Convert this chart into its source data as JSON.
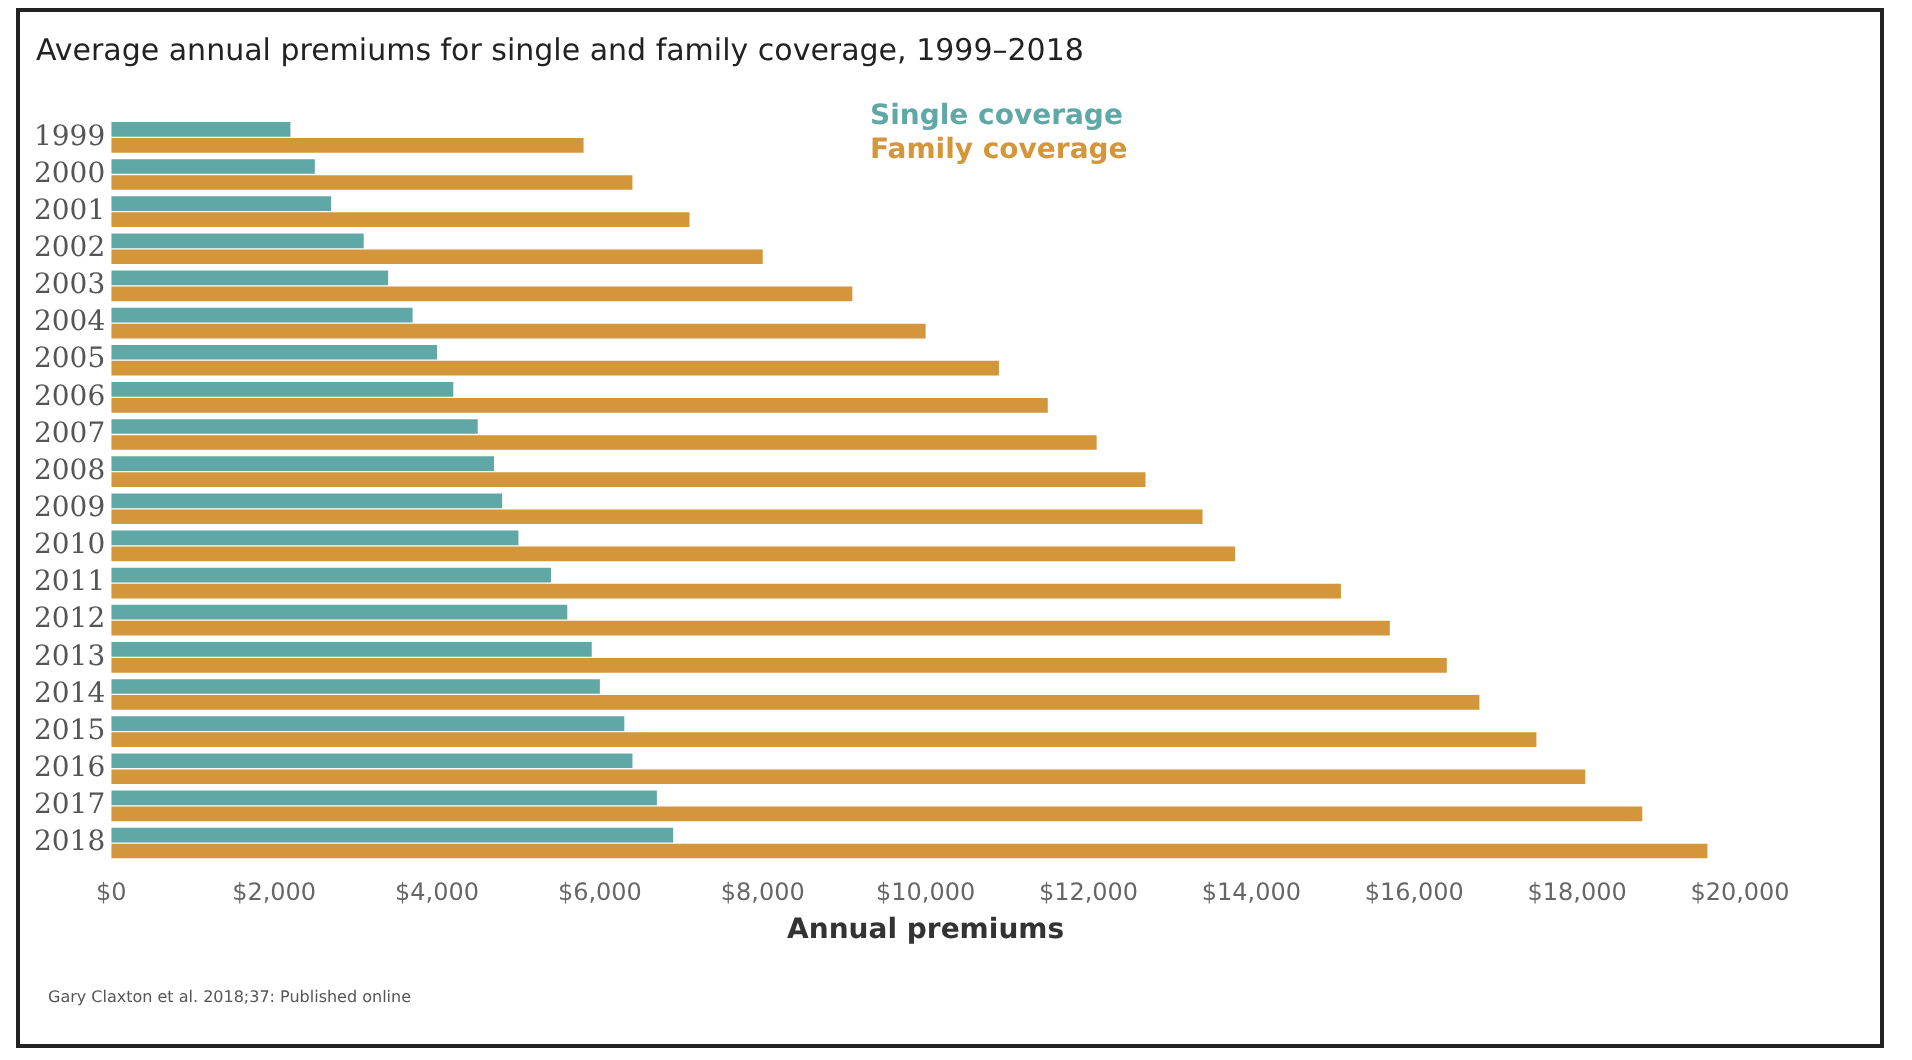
{
  "chart_data": {
    "type": "bar",
    "orientation": "horizontal",
    "title": "Average annual premiums for single and family coverage, 1999–2018",
    "xlabel": "Annual premiums",
    "categories": [
      "1999",
      "2000",
      "2001",
      "2002",
      "2003",
      "2004",
      "2005",
      "2006",
      "2007",
      "2008",
      "2009",
      "2010",
      "2011",
      "2012",
      "2013",
      "2014",
      "2015",
      "2016",
      "2017",
      "2018"
    ],
    "series": [
      {
        "name": "Single coverage",
        "color": "#5fa8a6",
        "values": [
          2200,
          2500,
          2700,
          3100,
          3400,
          3700,
          4000,
          4200,
          4500,
          4700,
          4800,
          5000,
          5400,
          5600,
          5900,
          6000,
          6300,
          6400,
          6700,
          6900
        ]
      },
      {
        "name": "Family coverage",
        "color": "#d4963a",
        "values": [
          5800,
          6400,
          7100,
          8000,
          9100,
          10000,
          10900,
          11500,
          12100,
          12700,
          13400,
          13800,
          15100,
          15700,
          16400,
          16800,
          17500,
          18100,
          18800,
          19600
        ]
      }
    ],
    "xlim": [
      0,
      20000
    ],
    "xticks": [
      {
        "value": 0,
        "label": "$0"
      },
      {
        "value": 2000,
        "label": "$2,000"
      },
      {
        "value": 4000,
        "label": "$4,000"
      },
      {
        "value": 6000,
        "label": "$6,000"
      },
      {
        "value": 8000,
        "label": "$8,000"
      },
      {
        "value": 10000,
        "label": "$10,000"
      },
      {
        "value": 12000,
        "label": "$12,000"
      },
      {
        "value": 14000,
        "label": "$14,000"
      },
      {
        "value": 16000,
        "label": "$16,000"
      },
      {
        "value": 18000,
        "label": "$18,000"
      },
      {
        "value": 20000,
        "label": "$20,000"
      }
    ],
    "grid": false,
    "legend": "top right",
    "annotations": [
      "Gary Claxton et al. 2018;37: Published online"
    ]
  }
}
